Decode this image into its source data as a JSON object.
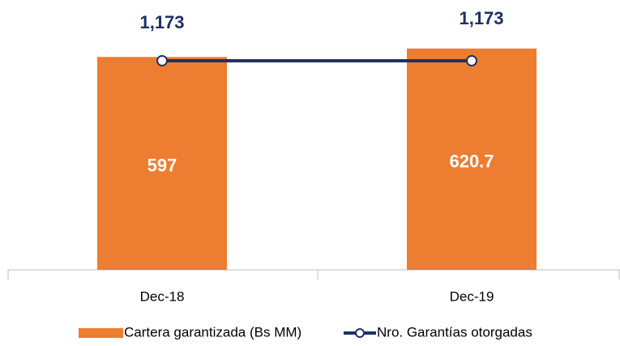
{
  "chart_data": {
    "type": "bar_line",
    "categories": [
      "Dec-18",
      "Dec-19"
    ],
    "series": [
      {
        "name": "Cartera garantizada (Bs MM)",
        "type": "bar",
        "color": "#ED7D31",
        "values": [
          597,
          620.7
        ]
      },
      {
        "name": "Nro. Garantías otorgadas",
        "type": "line",
        "axis": "y2",
        "color": "#1F3064",
        "values": [
          1173,
          1173
        ],
        "value_labels": [
          "1,173",
          "1,173"
        ]
      }
    ],
    "ylim": [
      0,
      700
    ],
    "y2lim": [
      0,
      1400
    ],
    "legend": "bottom"
  }
}
